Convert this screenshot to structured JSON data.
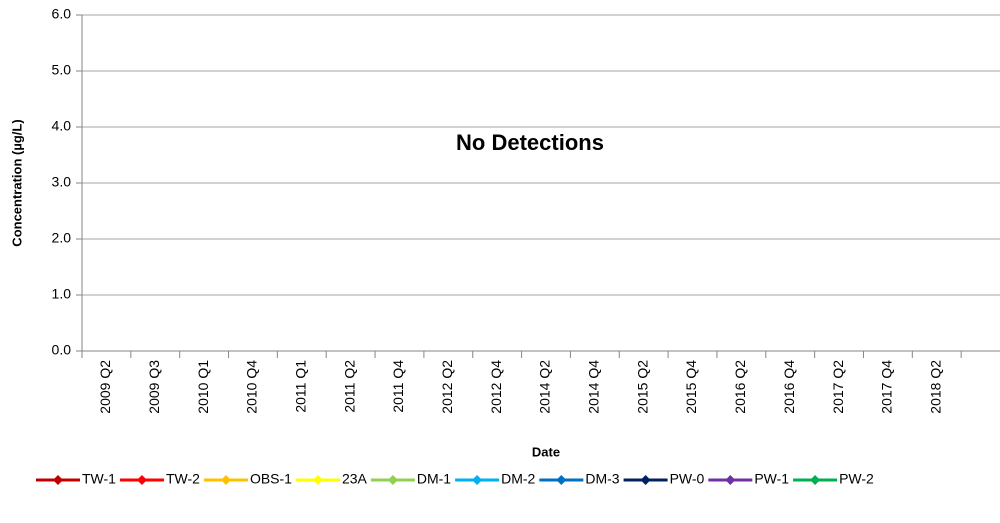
{
  "chart_data": {
    "type": "line",
    "annotation": "No Detections",
    "x_label": "Date",
    "y_label": "Concentration (µg/L)",
    "categories": [
      "2009 Q2",
      "2009 Q3",
      "2010 Q1",
      "2010 Q4",
      "2011 Q1",
      "2011 Q2",
      "2011 Q4",
      "2012 Q2",
      "2012 Q4",
      "2014 Q2",
      "2014 Q4",
      "2015 Q2",
      "2015 Q4",
      "2016 Q2",
      "2016 Q4",
      "2017 Q2",
      "2017 Q4",
      "2018 Q2",
      null
    ],
    "series": [
      {
        "name": "TW-1",
        "color": "#c00000",
        "values": [
          null,
          null,
          null,
          null,
          null,
          null,
          null,
          null,
          null,
          null,
          null,
          null,
          null,
          null,
          null,
          null,
          null,
          null,
          null
        ]
      },
      {
        "name": "TW-2",
        "color": "#ff0000",
        "values": [
          null,
          null,
          null,
          null,
          null,
          null,
          null,
          null,
          null,
          null,
          null,
          null,
          null,
          null,
          null,
          null,
          null,
          null,
          null
        ]
      },
      {
        "name": "OBS-1",
        "color": "#ffc000",
        "values": [
          null,
          null,
          null,
          null,
          null,
          null,
          null,
          null,
          null,
          null,
          null,
          null,
          null,
          null,
          null,
          null,
          null,
          null,
          null
        ]
      },
      {
        "name": "23A",
        "color": "#ffff00",
        "values": [
          null,
          null,
          null,
          null,
          null,
          null,
          null,
          null,
          null,
          null,
          null,
          null,
          null,
          null,
          null,
          null,
          null,
          null,
          null
        ]
      },
      {
        "name": "DM-1",
        "color": "#92d050",
        "values": [
          null,
          null,
          null,
          null,
          null,
          null,
          null,
          null,
          null,
          null,
          null,
          null,
          null,
          null,
          null,
          null,
          null,
          null,
          null
        ]
      },
      {
        "name": "DM-2",
        "color": "#00b0f0",
        "values": [
          null,
          null,
          null,
          null,
          null,
          null,
          null,
          null,
          null,
          null,
          null,
          null,
          null,
          null,
          null,
          null,
          null,
          null,
          null
        ]
      },
      {
        "name": "DM-3",
        "color": "#0070c0",
        "values": [
          null,
          null,
          null,
          null,
          null,
          null,
          null,
          null,
          null,
          null,
          null,
          null,
          null,
          null,
          null,
          null,
          null,
          null,
          null
        ]
      },
      {
        "name": "PW-0",
        "color": "#002060",
        "values": [
          null,
          null,
          null,
          null,
          null,
          null,
          null,
          null,
          null,
          null,
          null,
          null,
          null,
          null,
          null,
          null,
          null,
          null,
          null
        ]
      },
      {
        "name": "PW-1",
        "color": "#7030a0",
        "values": [
          null,
          null,
          null,
          null,
          null,
          null,
          null,
          null,
          null,
          null,
          null,
          null,
          null,
          null,
          null,
          null,
          null,
          null,
          null
        ]
      },
      {
        "name": "PW-2",
        "color": "#00b050",
        "values": [
          null,
          null,
          null,
          null,
          null,
          null,
          null,
          null,
          null,
          null,
          null,
          null,
          null,
          null,
          null,
          null,
          null,
          null,
          null
        ]
      }
    ],
    "ylim": [
      0,
      6
    ],
    "yticks": [
      {
        "value": 0,
        "label": "0.0"
      },
      {
        "value": 1,
        "label": "1.0"
      },
      {
        "value": 2,
        "label": "2.0"
      },
      {
        "value": 3,
        "label": "3.0"
      },
      {
        "value": 4,
        "label": "4.0"
      },
      {
        "value": 5,
        "label": "5.0"
      },
      {
        "value": 6,
        "label": "6.0"
      }
    ],
    "grid": true,
    "legend": "bottom"
  }
}
